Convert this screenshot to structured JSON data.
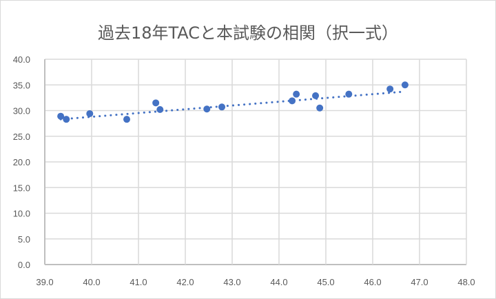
{
  "chart_data": {
    "type": "scatter",
    "title": "過去18年TACと本試験の相関（択一式）",
    "xlabel": "",
    "ylabel": "",
    "xlim": [
      39.0,
      48.0
    ],
    "ylim": [
      0.0,
      40.0
    ],
    "x_ticks": [
      "39.0",
      "40.0",
      "41.0",
      "42.0",
      "43.0",
      "44.0",
      "45.0",
      "46.0",
      "47.0",
      "48.0"
    ],
    "y_ticks": [
      "0.0",
      "5.0",
      "10.0",
      "15.0",
      "20.0",
      "25.0",
      "30.0",
      "35.0",
      "40.0"
    ],
    "grid": true,
    "legend": null,
    "series": [
      {
        "name": "data",
        "color": "#4472c4",
        "points": [
          {
            "x": 39.34,
            "y": 28.9
          },
          {
            "x": 39.46,
            "y": 28.3
          },
          {
            "x": 39.96,
            "y": 29.4
          },
          {
            "x": 40.75,
            "y": 28.3
          },
          {
            "x": 41.37,
            "y": 31.5
          },
          {
            "x": 41.46,
            "y": 30.2
          },
          {
            "x": 42.46,
            "y": 30.3
          },
          {
            "x": 42.78,
            "y": 30.7
          },
          {
            "x": 44.28,
            "y": 31.9
          },
          {
            "x": 44.37,
            "y": 33.2
          },
          {
            "x": 44.78,
            "y": 32.9
          },
          {
            "x": 44.87,
            "y": 30.5
          },
          {
            "x": 45.49,
            "y": 33.2
          },
          {
            "x": 46.37,
            "y": 34.2
          },
          {
            "x": 46.69,
            "y": 35.0
          }
        ]
      }
    ],
    "trendline": {
      "type": "linear",
      "style": "dotted",
      "color": "#4472c4",
      "from": {
        "x": 39.34,
        "y": 28.3
      },
      "to": {
        "x": 46.69,
        "y": 33.7
      }
    }
  }
}
